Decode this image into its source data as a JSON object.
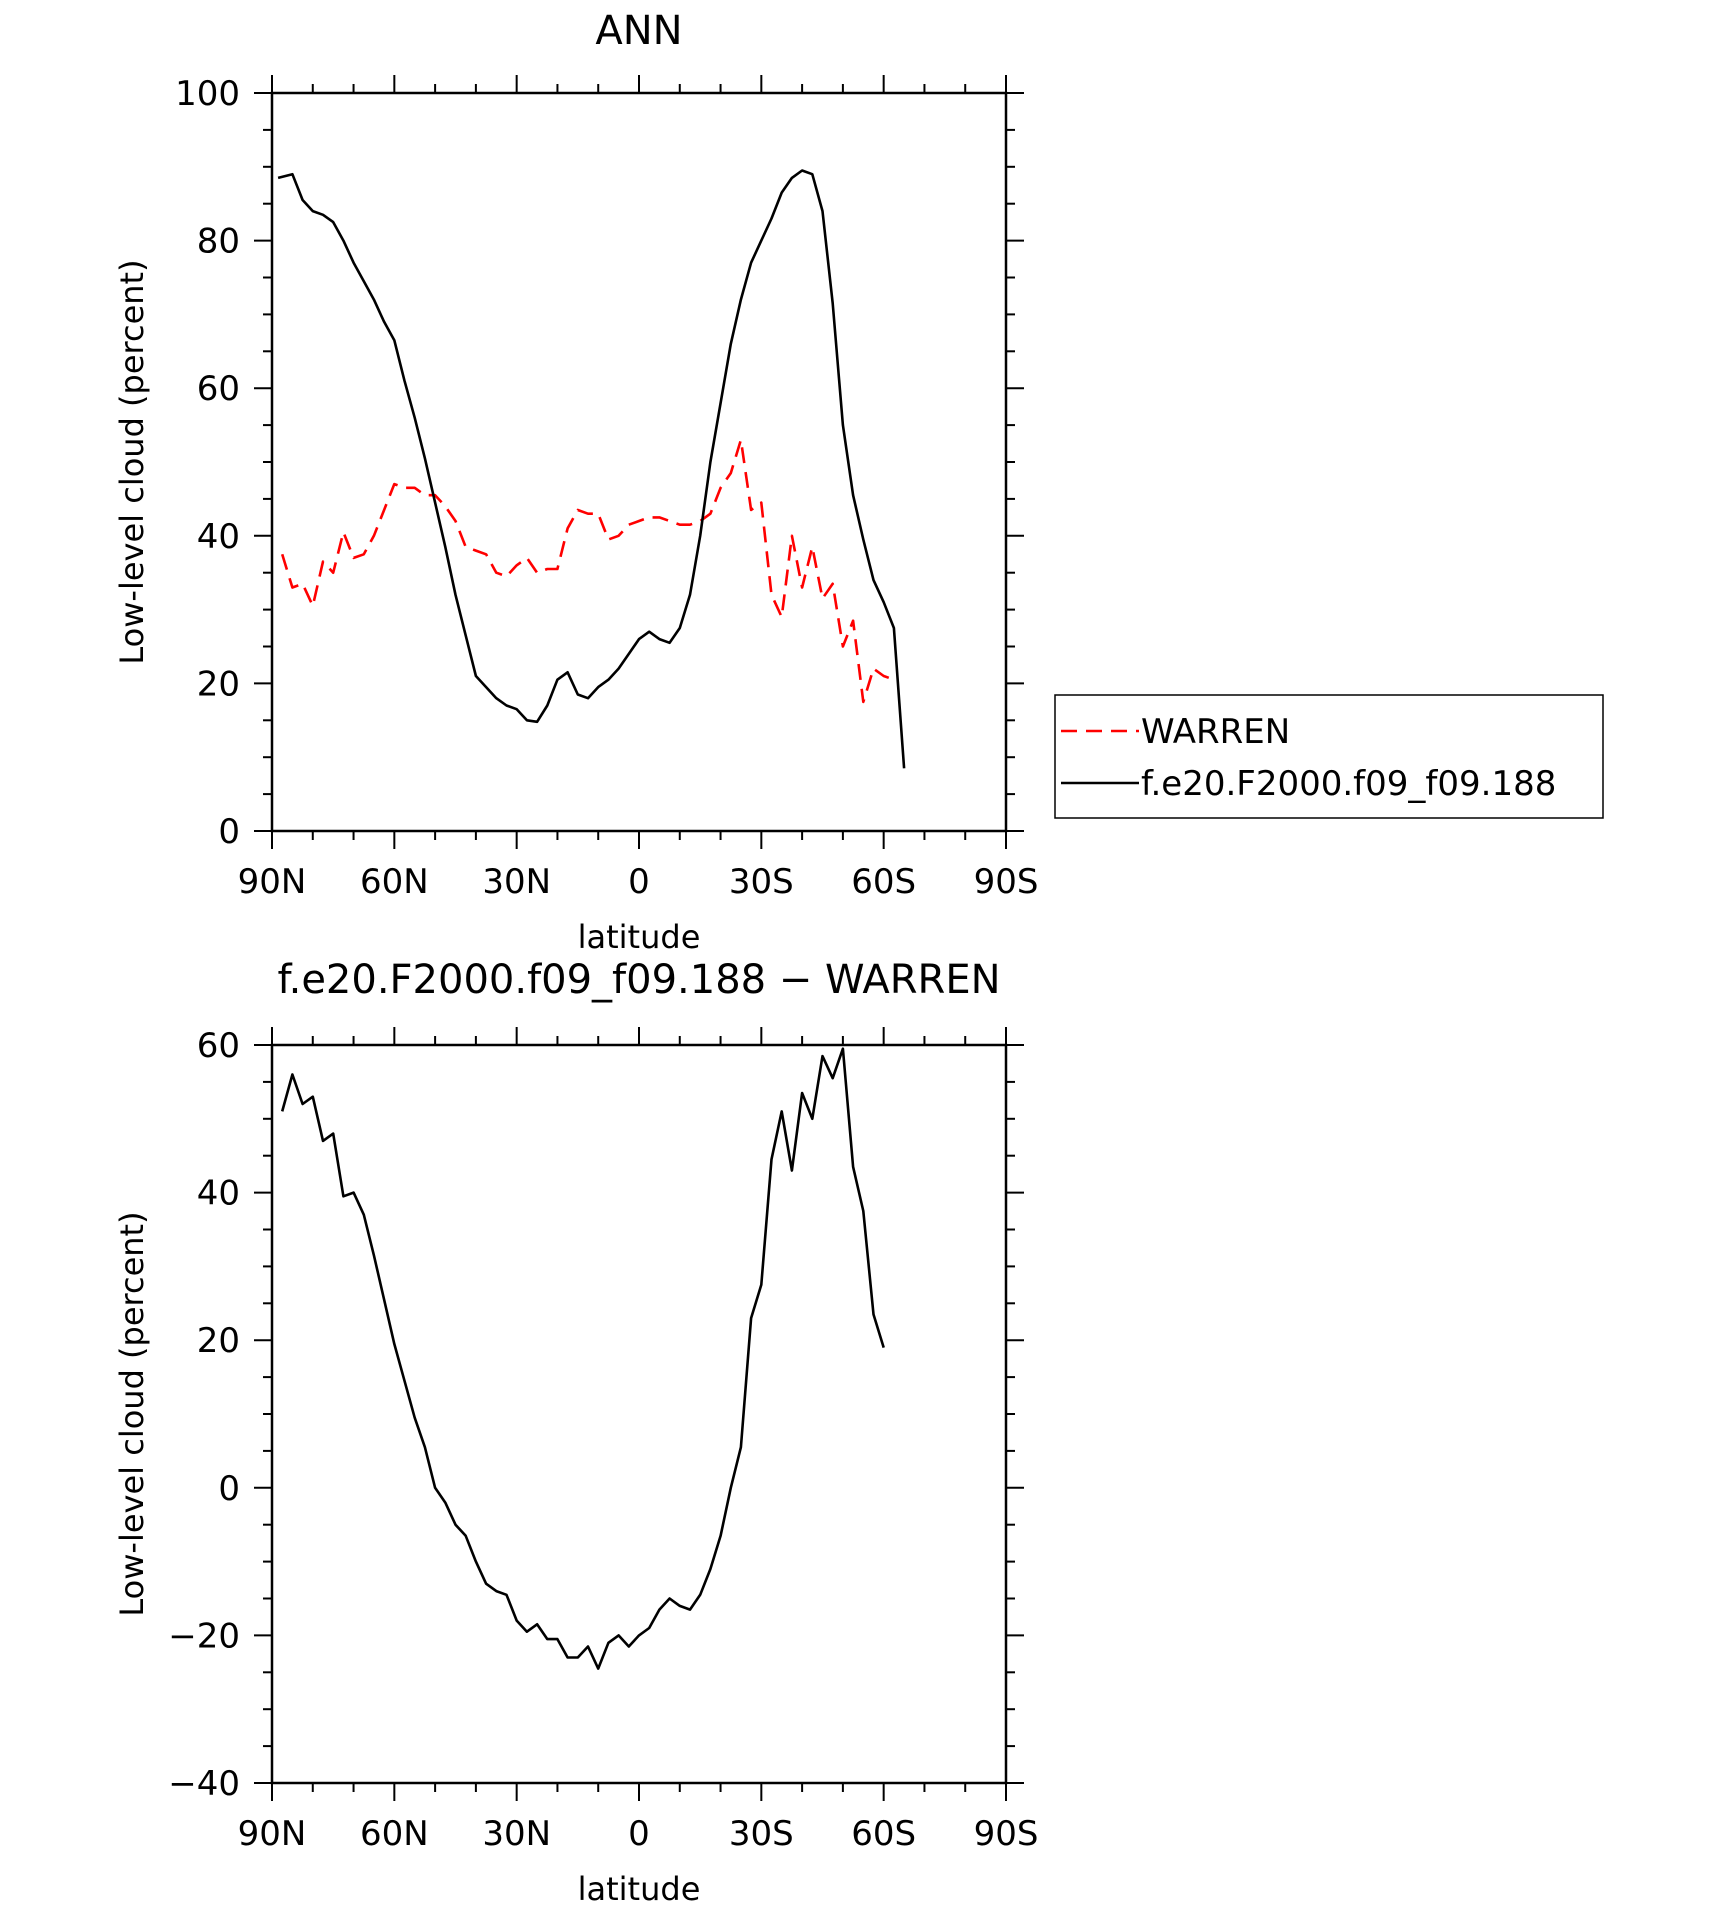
{
  "chart_data": [
    {
      "type": "line",
      "title": "ANN",
      "xlabel": "latitude",
      "ylabel": "Low-level cloud (percent)",
      "xlim": [
        90,
        -90
      ],
      "ylim": [
        0,
        100
      ],
      "xticks": [
        90,
        60,
        30,
        0,
        -30,
        -60,
        -90
      ],
      "xticklabels": [
        "90N",
        "60N",
        "30N",
        "0",
        "30S",
        "60S",
        "90S"
      ],
      "yticks": [
        0,
        20,
        40,
        60,
        80,
        100
      ],
      "yticklabels": [
        "0",
        "20",
        "40",
        "60",
        "80",
        "100"
      ],
      "grid": false,
      "legend": "right",
      "series": [
        {
          "name": "WARREN",
          "color": "#ff0000",
          "dash": true,
          "x": [
            87.5,
            85,
            82.5,
            80,
            77.5,
            75,
            72.5,
            70,
            67.5,
            65,
            62.5,
            60,
            57.5,
            55,
            52.5,
            50,
            47.5,
            45,
            42.5,
            40,
            37.5,
            35,
            32.5,
            30,
            27.5,
            25,
            22.5,
            20,
            17.5,
            15,
            12.5,
            10,
            7.5,
            5,
            2.5,
            0,
            -2.5,
            -5,
            -7.5,
            -10,
            -12.5,
            -15,
            -17.5,
            -20,
            -22.5,
            -25,
            -27.5,
            -30,
            -32.5,
            -35,
            -37.5,
            -40,
            -42.5,
            -45,
            -47.5,
            -50,
            -52.5,
            -55,
            -57.5,
            -60,
            -62.5,
            -65,
            -67.5,
            -70,
            -72.5,
            -75,
            -77.5
          ],
          "y": [
            37.5,
            33,
            33.5,
            30.5,
            36.5,
            35,
            40.5,
            37,
            37.5,
            40,
            43.5,
            47,
            46.5,
            46.5,
            45.5,
            45.5,
            44,
            42,
            38.5,
            38,
            37.5,
            35,
            34.5,
            36,
            37,
            35,
            35.5,
            35.5,
            41,
            43.5,
            43,
            43,
            39.5,
            40,
            41.5,
            42,
            42.5,
            42.5,
            42,
            41.5,
            41.5,
            42,
            43,
            46.5,
            48.5,
            53,
            43.5,
            44.5,
            32,
            29,
            40,
            33,
            38.5,
            31.5,
            33.5,
            25,
            28.5,
            17.5,
            22,
            21,
            20.5,
            null,
            null,
            null,
            null,
            null,
            null
          ]
        },
        {
          "name": "f.e20.F2000.f09_f09.188",
          "color": "#000000",
          "dash": false,
          "x": [
            88.5,
            85,
            82.5,
            80,
            77.5,
            75,
            72.5,
            70,
            67.5,
            65,
            62.5,
            60,
            57.5,
            55,
            52.5,
            50,
            47.5,
            45,
            42.5,
            40,
            37.5,
            35,
            32.5,
            30,
            27.5,
            25,
            22.5,
            20,
            17.5,
            15,
            12.5,
            10,
            7.5,
            5,
            2.5,
            0,
            -2.5,
            -5,
            -7.5,
            -10,
            -12.5,
            -15,
            -17.5,
            -20,
            -22.5,
            -25,
            -27.5,
            -30,
            -32.5,
            -35,
            -37.5,
            -40,
            -42.5,
            -45,
            -47.5,
            -50,
            -52.5,
            -55,
            -57.5,
            -60,
            -62.5,
            -65,
            -67.5,
            -70,
            -72.5,
            -75,
            -77.5,
            -80,
            -82.5,
            -85,
            -87.5
          ],
          "y": [
            88.5,
            89,
            85.5,
            84,
            83.5,
            82.5,
            80,
            77,
            74.5,
            72,
            69,
            66.5,
            61,
            56,
            50.5,
            44.5,
            38.5,
            32,
            26.5,
            21,
            19.5,
            18,
            17,
            16.5,
            15,
            14.8,
            17,
            20.5,
            21.5,
            18.5,
            18,
            19.5,
            20.5,
            22,
            24,
            26,
            27,
            26,
            25.5,
            27.5,
            32,
            40,
            50,
            58,
            66,
            72,
            77,
            80,
            83,
            86.5,
            88.5,
            89.5,
            89,
            84,
            71.5,
            55,
            45.5,
            39.5,
            34,
            31,
            27.5,
            8.5,
            null,
            null,
            null,
            null,
            null,
            null,
            null,
            null,
            null
          ]
        }
      ]
    },
    {
      "type": "line",
      "title": "f.e20.F2000.f09_f09.188 − WARREN",
      "xlabel": "latitude",
      "ylabel": "Low-level cloud (percent)",
      "xlim": [
        90,
        -90
      ],
      "ylim": [
        -40,
        60
      ],
      "xticks": [
        90,
        60,
        30,
        0,
        -30,
        -60,
        -90
      ],
      "xticklabels": [
        "90N",
        "60N",
        "30N",
        "0",
        "30S",
        "60S",
        "90S"
      ],
      "yticks": [
        -40,
        -20,
        0,
        20,
        40,
        60
      ],
      "yticklabels": [
        "−40",
        "−20",
        "0",
        "20",
        "40",
        "60"
      ],
      "grid": false,
      "series": [
        {
          "color": "#000000",
          "dash": false,
          "x": [
            87.5,
            85,
            82.5,
            80,
            77.5,
            75,
            72.5,
            70,
            67.5,
            65,
            62.5,
            60,
            57.5,
            55,
            52.5,
            50,
            47.5,
            45,
            42.5,
            40,
            37.5,
            35,
            32.5,
            30,
            27.5,
            25,
            22.5,
            20,
            17.5,
            15,
            12.5,
            10,
            7.5,
            5,
            2.5,
            0,
            -2.5,
            -5,
            -7.5,
            -10,
            -12.5,
            -15,
            -17.5,
            -20,
            -22.5,
            -25,
            -27.5,
            -30,
            -32.5,
            -35,
            -37.5,
            -40,
            -42.5,
            -45,
            -47.5,
            -50,
            -52.5,
            -55,
            -57.5,
            -60,
            -62.5,
            -65,
            -67.5,
            -70,
            -72.5,
            -75,
            -77.5
          ],
          "y": [
            51,
            56,
            52,
            53,
            47,
            48,
            39.5,
            40,
            37,
            31.5,
            25.5,
            19.5,
            14.5,
            9.5,
            5.5,
            0,
            -2,
            -5,
            -6.5,
            -10,
            -13,
            -14,
            -14.5,
            -18,
            -19.5,
            -18.5,
            -20.5,
            -20.5,
            -23,
            -23,
            -21.5,
            -24.5,
            -21,
            -20,
            -21.5,
            -20,
            -19,
            -16.5,
            -15,
            -16,
            -16.5,
            -14.5,
            -11,
            -6.5,
            0,
            5.5,
            23,
            27.5,
            44.5,
            51,
            43,
            53.5,
            50,
            58.5,
            55.5,
            59.5,
            43.5,
            37.5,
            23.5,
            19,
            null,
            null,
            null,
            null,
            null,
            null,
            null
          ]
        }
      ]
    }
  ]
}
